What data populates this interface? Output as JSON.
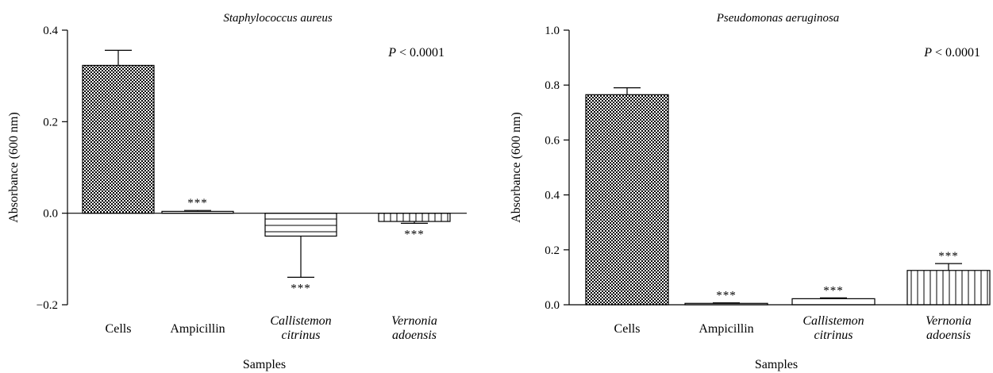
{
  "chart_data": [
    {
      "type": "bar",
      "title": "Staphylococcus aureus",
      "xlabel": "Samples",
      "ylabel": "Absorbance (600 nm)",
      "ylim": [
        -0.2,
        0.4
      ],
      "yticks": [
        "0.4",
        "0.2",
        "0.0",
        "−0.2"
      ],
      "ytick_values": [
        0.4,
        0.2,
        0.0,
        -0.2
      ],
      "annotation": "P < 0.0001",
      "categories": [
        {
          "line1": "Cells",
          "line2": "",
          "italic": false
        },
        {
          "line1": "Ampicillin",
          "line2": "",
          "italic": false
        },
        {
          "line1": "Callistemon",
          "line2": "citrinus",
          "italic": true
        },
        {
          "line1": "Vernonia",
          "line2": "adoensis",
          "italic": true
        }
      ],
      "values": [
        0.323,
        0.004,
        -0.05,
        -0.018
      ],
      "errors": [
        0.033,
        0.002,
        0.09,
        0.004
      ],
      "significance": [
        "",
        "***",
        "***",
        "***"
      ],
      "patterns": [
        "checker",
        "none",
        "hlines",
        "vlines"
      ],
      "grid": false
    },
    {
      "type": "bar",
      "title": "Pseudomonas aeruginosa",
      "xlabel": "Samples",
      "ylabel": "Absorbance (600 nm)",
      "ylim": [
        0.0,
        1.0
      ],
      "yticks": [
        "1.0",
        "0.8",
        "0.6",
        "0.4",
        "0.2",
        "0.0"
      ],
      "ytick_values": [
        1.0,
        0.8,
        0.6,
        0.4,
        0.2,
        0.0
      ],
      "annotation": "P < 0.0001",
      "categories": [
        {
          "line1": "Cells",
          "line2": "",
          "italic": false
        },
        {
          "line1": "Ampicillin",
          "line2": "",
          "italic": false
        },
        {
          "line1": "Callistemon",
          "line2": "citrinus",
          "italic": true
        },
        {
          "line1": "Vernonia",
          "line2": "adoensis",
          "italic": true
        }
      ],
      "values": [
        0.765,
        0.005,
        0.022,
        0.125
      ],
      "errors": [
        0.025,
        0.002,
        0.003,
        0.025
      ],
      "significance": [
        "",
        "***",
        "***",
        "***"
      ],
      "patterns": [
        "checker",
        "none",
        "none",
        "vlines"
      ],
      "grid": false
    }
  ]
}
